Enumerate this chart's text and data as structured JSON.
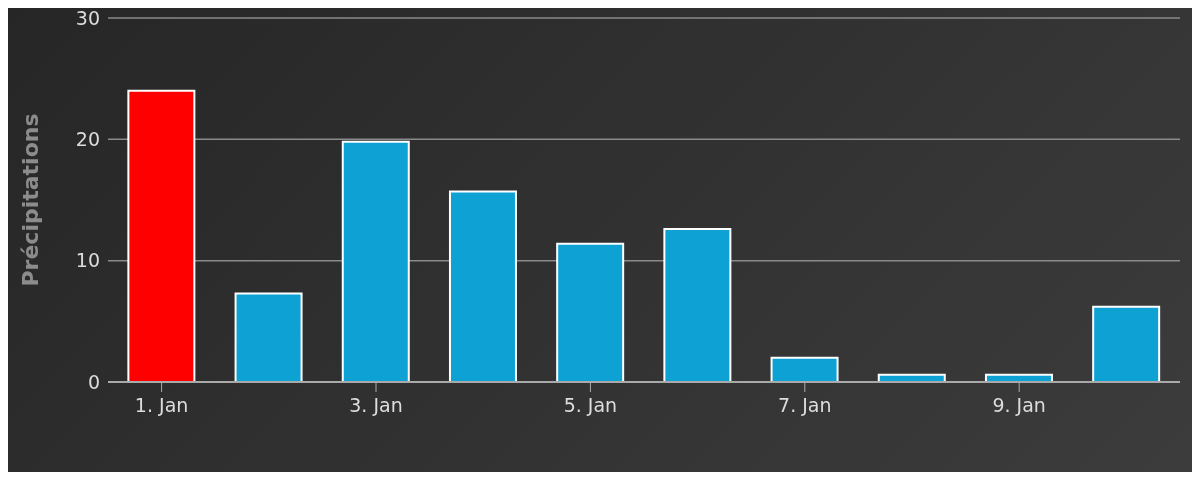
{
  "chart_data": {
    "type": "bar",
    "ylabel": "Précipitations",
    "categories": [
      "1. Jan",
      null,
      "3. Jan",
      null,
      "5. Jan",
      null,
      "7. Jan",
      null,
      "9. Jan",
      null
    ],
    "values": [
      24,
      7.3,
      19.8,
      15.7,
      11.4,
      12.6,
      2.0,
      0.6,
      0.6,
      6.2
    ],
    "colors": [
      "#ff0000",
      "#0ea2d4",
      "#0ea2d4",
      "#0ea2d4",
      "#0ea2d4",
      "#0ea2d4",
      "#0ea2d4",
      "#0ea2d4",
      "#0ea2d4",
      "#0ea2d4"
    ],
    "ylim": [
      0,
      30
    ],
    "yticks": [
      0,
      10,
      20,
      30
    ],
    "grid": "y"
  }
}
